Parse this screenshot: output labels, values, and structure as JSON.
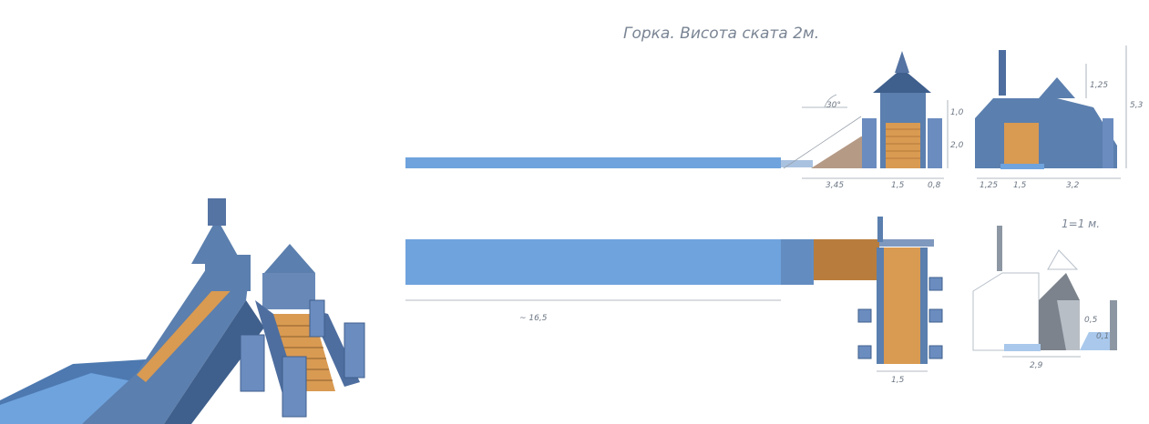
{
  "title": "Горка. Висота ската 2м.",
  "scale_note": "1=1 м.",
  "colors": {
    "slide_blue": "#6fa3dd",
    "structure_blue": "#5b7fae",
    "dark_blue": "#3f5f8c",
    "wood": "#d99a52",
    "ramp_brown": "#b59a86",
    "line": "#9aa3ad"
  },
  "side_view": {
    "angle_label": "30°",
    "dims": {
      "ramp_len": "3,45",
      "stair_w": "1,5",
      "post_w": "0,8",
      "roof_h": "1,0",
      "slide_h": "2,0"
    }
  },
  "front_view": {
    "dims": {
      "top_h": "1,25",
      "total_h": "5,3",
      "left_w": "1,25",
      "mid_w": "1,5",
      "right_w": "3,2"
    }
  },
  "plan_view": {
    "dims": {
      "length": "~ 16,5",
      "stair_w": "1,5"
    }
  },
  "section_view": {
    "dims": {
      "base_w": "2,9",
      "small_a": "0,5",
      "small_b": "0,1"
    }
  }
}
